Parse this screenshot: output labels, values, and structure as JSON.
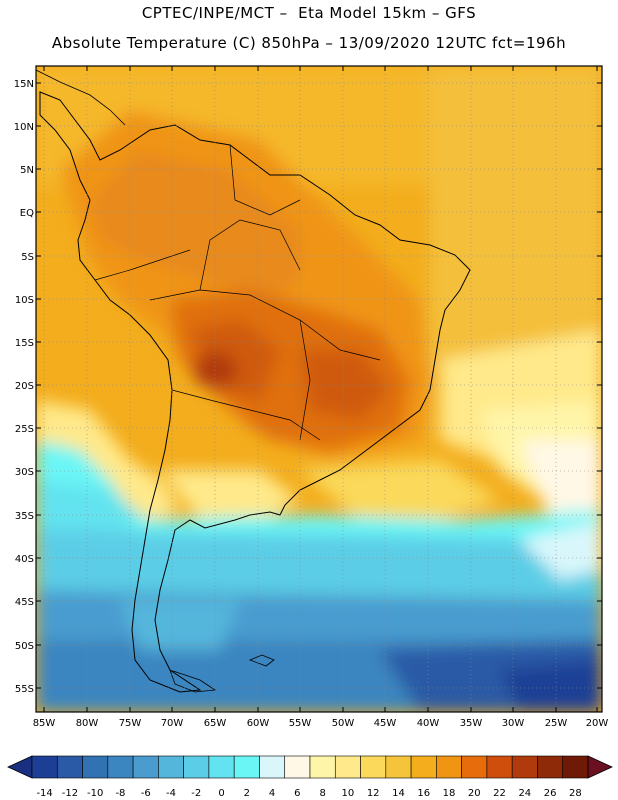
{
  "header": {
    "line1": "CPTEC/INPE/MCT –  Eta Model 15km – GFS",
    "line2": "Absolute Temperature (C) 850hPa – 13/09/2020 12UTC fct=196h"
  },
  "map": {
    "lat_labels": [
      "15N",
      "10N",
      "5N",
      "EQ",
      "5S",
      "10S",
      "15S",
      "20S",
      "25S",
      "30S",
      "35S",
      "40S",
      "45S",
      "50S",
      "55S"
    ],
    "lon_labels": [
      "85W",
      "80W",
      "75W",
      "70W",
      "65W",
      "60W",
      "55W",
      "50W",
      "45W",
      "40W",
      "35W",
      "30W",
      "25W",
      "20W"
    ]
  },
  "colorbar": {
    "labels": [
      "-14",
      "-12",
      "-10",
      "-8",
      "-6",
      "-4",
      "-2",
      "0",
      "2",
      "4",
      "6",
      "8",
      "10",
      "12",
      "14",
      "16",
      "18",
      "20",
      "22",
      "24",
      "26",
      "28"
    ],
    "colors": [
      "#1c3f95",
      "#2a5aa6",
      "#3072b2",
      "#3b85c0",
      "#4a9ccf",
      "#55b6dc",
      "#5ccde6",
      "#62e3ef",
      "#6bf6f6",
      "#d9f7fb",
      "#fff8e6",
      "#fff5a8",
      "#ffe98a",
      "#fbd95a",
      "#f5c43a",
      "#f3ad1d",
      "#f09413",
      "#e66c0c",
      "#cf4e0c",
      "#b03a0b",
      "#8e2a08",
      "#6e1a06"
    ],
    "under_color": "#1a2f80",
    "over_color": "#6a1020"
  }
}
